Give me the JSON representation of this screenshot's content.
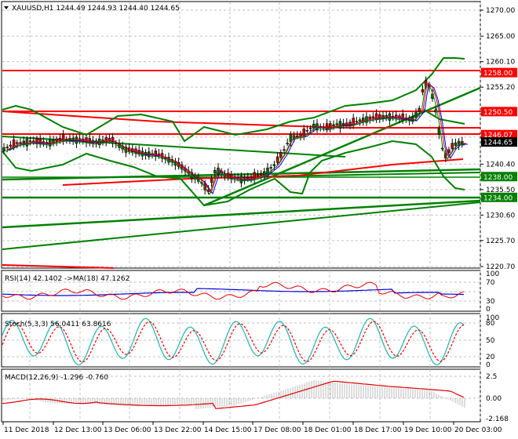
{
  "header": {
    "symbol": "XAUUSD,H1",
    "ohlc": "1244.49 1244.93 1244.40 1244.65",
    "full": "XAUUSD,H1  1244.49 1244.93 1244.40 1244.65"
  },
  "colors": {
    "bull": "#006400",
    "bear": "#c00000",
    "level_red": "#ff0000",
    "level_green": "#008000",
    "bollinger": "#008000",
    "rsi": "#dd0000",
    "rsi_ma": "#0000dd",
    "stoch_main": "#20b2aa",
    "stoch_signal": "#ee0000",
    "macd_hist": "#bbbbbb",
    "macd_signal": "#dd0000",
    "grid": "#c0c0c0",
    "current_price_bg": "#000000"
  },
  "price_axis": {
    "ticks": [
      "1270.00",
      "1265.00",
      "1260.10",
      "1255.20",
      "1250.50",
      "1245.60",
      "1240.40",
      "1235.50",
      "1230.60",
      "1225.70",
      "1220.70"
    ],
    "tags": [
      {
        "label": "1258.00",
        "color": "#ff0000"
      },
      {
        "label": "1250.50",
        "color": "#ff0000"
      },
      {
        "label": "1246.07",
        "color": "#ff0000"
      },
      {
        "label": "1244.65",
        "color": "#000000"
      },
      {
        "label": "1238.00",
        "color": "#008000"
      },
      {
        "label": "1234.00",
        "color": "#008000"
      }
    ]
  },
  "time_axis": {
    "ticks": [
      "11 Dec 2018",
      "12 Dec 13:00",
      "13 Dec 06:00",
      "13 Dec 22:00",
      "14 Dec 15:00",
      "17 Dec 08:00",
      "18 Dec 01:00",
      "18 Dec 17:00",
      "19 Dec 10:00",
      "20 Dec 03:00"
    ]
  },
  "indicators": {
    "rsi": {
      "label": "RSI(14) 42.1402  ->MA(18) 47.1262",
      "ticks": [
        "100",
        "70",
        "30",
        "0"
      ]
    },
    "stoch": {
      "label": "Stoch(5,3,3) 56.0411 63.8616",
      "ticks": [
        "100",
        "80",
        "50",
        "20",
        "0"
      ]
    },
    "macd": {
      "label": "MACD(12,26,9) -1.296 -0.760",
      "ticks": [
        "2.5",
        "0.00",
        "-2.168"
      ]
    }
  },
  "chart_data": [
    {
      "type": "candlestick",
      "title": "XAUUSD,H1",
      "last": {
        "open": 1244.49,
        "high": 1244.93,
        "low": 1244.4,
        "close": 1244.65
      },
      "ylim": [
        1220.7,
        1270.0
      ],
      "support_resistance": {
        "red": [
          1258.0,
          1250.5,
          1246.07
        ],
        "green": [
          1238.0,
          1234.0
        ]
      },
      "x_labels": [
        "11 Dec 2018",
        "12 Dec 13:00",
        "13 Dec 06:00",
        "13 Dec 22:00",
        "14 Dec 15:00",
        "17 Dec 08:00",
        "18 Dec 01:00",
        "18 Dec 17:00",
        "19 Dec 10:00",
        "20 Dec 03:00"
      ],
      "close_path_approx": [
        1243.5,
        1244.8,
        1244.0,
        1243.0,
        1240.5,
        1237.0,
        1238.5,
        1237.0,
        1236.5,
        1238.5,
        1246.0,
        1247.5,
        1248.0,
        1248.5,
        1248.0,
        1257.0,
        1252.0,
        1242.0,
        1244.65
      ],
      "indicators": [
        "Bollinger Bands",
        "Moving averages",
        "Trendlines"
      ]
    },
    {
      "type": "line",
      "title": "RSI(14) 42.1402 ->MA(18) 47.1262",
      "series": [
        {
          "name": "RSI(14)",
          "last": 42.1402
        },
        {
          "name": "MA(18)",
          "last": 47.1262
        }
      ],
      "ylim": [
        0,
        100
      ],
      "levels": [
        30,
        70
      ]
    },
    {
      "type": "line",
      "title": "Stoch(5,3,3) 56.0411 63.8616",
      "series": [
        {
          "name": "%K",
          "last": 56.0411
        },
        {
          "name": "%D",
          "last": 63.8616
        }
      ],
      "ylim": [
        0,
        100
      ],
      "levels": [
        20,
        50,
        80
      ]
    },
    {
      "type": "bar",
      "title": "MACD(12,26,9) -1.296 -0.760",
      "series": [
        {
          "name": "MACD",
          "last": -1.296
        },
        {
          "name": "Signal",
          "last": -0.76
        }
      ],
      "ylim": [
        -2.168,
        2.5
      ]
    }
  ]
}
